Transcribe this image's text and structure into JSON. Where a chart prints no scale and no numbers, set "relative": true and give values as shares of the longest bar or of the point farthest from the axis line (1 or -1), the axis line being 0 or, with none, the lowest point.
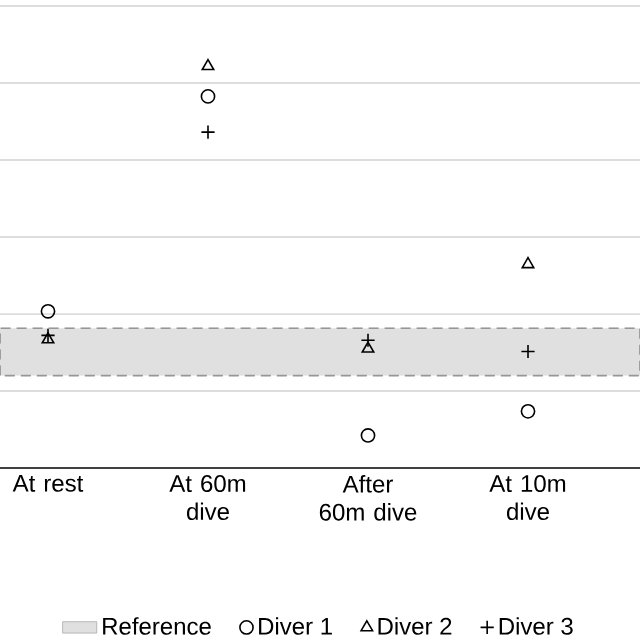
{
  "chart_data": {
    "type": "scatter",
    "relative": true,
    "grid": true,
    "legend": "bottom",
    "categories": [
      "At rest",
      "At 60m dive",
      "After 60m dive",
      "At 10m dive"
    ],
    "bands": [
      {
        "axis": "y",
        "from": 0.23,
        "to": 0.348,
        "label": "Reference",
        "color": "#e0e0e0"
      }
    ],
    "series": [
      {
        "name": "Diver 1",
        "color": "#000000",
        "marker": "circle",
        "values": [
          0.39,
          0.925,
          0.081,
          0.141
        ]
      },
      {
        "name": "Diver 2",
        "color": "#000000",
        "marker": "triangle",
        "values": [
          0.32,
          1.0,
          0.297,
          0.507
        ]
      },
      {
        "name": "Diver 3",
        "color": "#000000",
        "marker": "cross",
        "values": [
          0.33,
          0.836,
          0.318,
          0.29
        ]
      }
    ]
  }
}
